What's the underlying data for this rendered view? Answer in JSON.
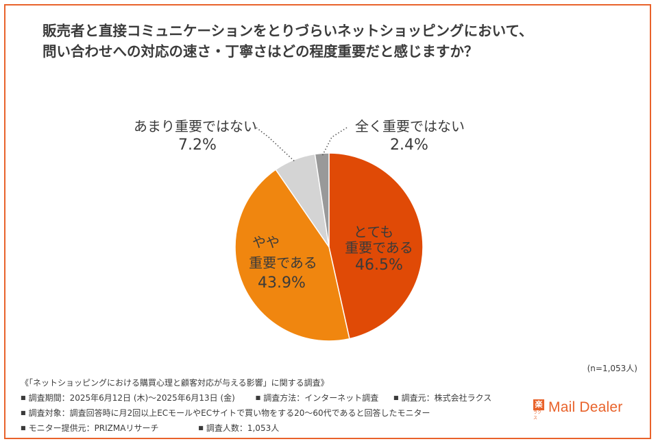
{
  "title": {
    "line1": "販売者と直接コミュニケーションをとりづらいネットショッピングにおいて、",
    "line2": "問い合わせへの対応の速さ・丁寧さはどの程度重要だと感じますか？"
  },
  "chart_data": {
    "type": "pie",
    "slices": [
      {
        "label_lines": [
          "とても",
          "重要である"
        ],
        "value": 46.5,
        "value_label": "46.5%",
        "color": "#e04a06"
      },
      {
        "label_lines": [
          "やや",
          "重要である"
        ],
        "value": 43.9,
        "value_label": "43.9%",
        "color": "#f0860f"
      },
      {
        "label_lines": [
          "あまり重要ではない"
        ],
        "value": 7.2,
        "value_label": "7.2%",
        "color": "#d4d4d4"
      },
      {
        "label_lines": [
          "全く重要ではない"
        ],
        "value": 2.4,
        "value_label": "2.4%",
        "color": "#999999"
      }
    ]
  },
  "sample_size": "(n=1,053人)",
  "survey": {
    "heading": "《「ネットショッピングにおける購買心理と顧客対応が与える影響」に関する調査》",
    "period": "調査期間：2025年6月12日 (木)～2025年6月13日 (金)",
    "method": "調査方法：インターネット調査",
    "source": "調査元：株式会社ラクス",
    "target": "調査対象：調査回答時に月2回以上ECモールやECサイトで買い物をする20～60代であると回答したモニター",
    "provider": "モニター提供元：PRIZMAリサーチ",
    "count": "調査人数：1,053人"
  },
  "logo": {
    "mark_char": "楽",
    "mark_sub": "ラクス",
    "text": "Mail Dealer"
  }
}
